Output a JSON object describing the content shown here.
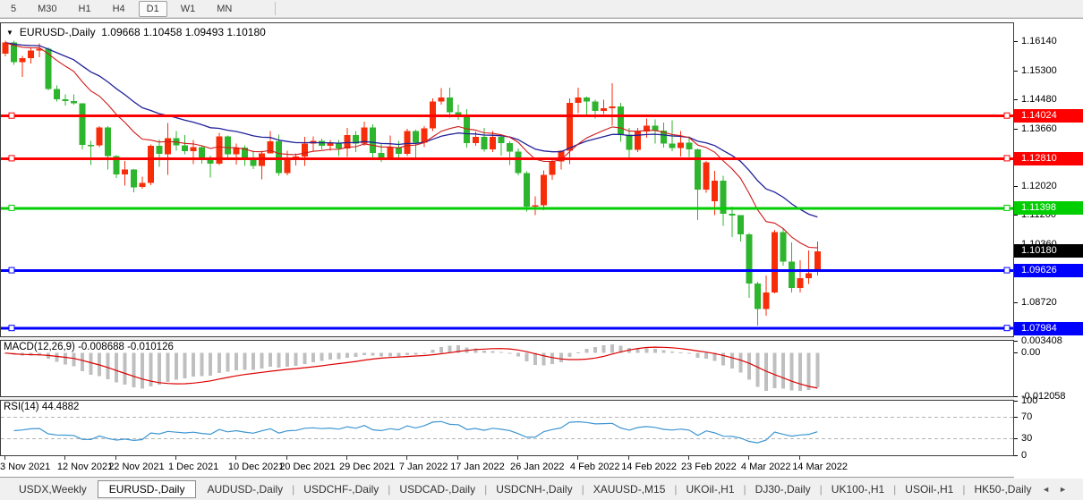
{
  "toolbar": {
    "timeframes": [
      "5",
      "M30",
      "H1",
      "H4",
      "D1",
      "W1",
      "MN"
    ],
    "active": "D1"
  },
  "chart_header": {
    "dropdown_icon": "▼",
    "symbol_period": "EURUSD-,Daily",
    "ohlc": "1.09668 1.10458 1.09493 1.10180"
  },
  "indicator_labels": {
    "macd": "MACD(12,26,9) -0.008688 -0.010126",
    "rsi": "RSI(14) 44.4882"
  },
  "right_axis": {
    "price_ticks": [
      "1.16140",
      "1.15300",
      "1.14480",
      "1.13660",
      "1.12020",
      "1.11200",
      "1.10360",
      "1.08720"
    ],
    "macd_ticks": [
      {
        "text": "0.003408",
        "value": 0.003408
      },
      {
        "text": "0.00",
        "value": 0
      },
      {
        "text": "-0.012058",
        "value": -0.012058
      }
    ],
    "rsi_ticks": [
      {
        "text": "100",
        "value": 100
      },
      {
        "text": "70",
        "value": 70
      },
      {
        "text": "30",
        "value": 30
      },
      {
        "text": "0",
        "value": 0
      }
    ]
  },
  "levels": [
    {
      "label": "1.14024",
      "price": 1.14024,
      "color": "#FF0000"
    },
    {
      "label": "1.12810",
      "price": 1.1281,
      "color": "#FF0000"
    },
    {
      "label": "1.11398",
      "price": 1.11398,
      "color": "#00CE00"
    },
    {
      "label": "1.09626",
      "price": 1.09626,
      "color": "#0000FF"
    },
    {
      "label": "1.07984",
      "price": 1.07984,
      "color": "#0000FF"
    }
  ],
  "current_price": {
    "label": "1.10180",
    "price": 1.1018,
    "color": "#000000"
  },
  "time_axis": [
    {
      "text": "3 Nov 2021",
      "index": 0
    },
    {
      "text": "12 Nov 2021",
      "index": 7
    },
    {
      "text": "22 Nov 2021",
      "index": 13
    },
    {
      "text": "1 Dec 2021",
      "index": 20
    },
    {
      "text": "10 Dec 2021",
      "index": 27
    },
    {
      "text": "20 Dec 2021",
      "index": 33
    },
    {
      "text": "29 Dec 2021",
      "index": 40
    },
    {
      "text": "7 Jan 2022",
      "index": 47
    },
    {
      "text": "17 Jan 2022",
      "index": 53
    },
    {
      "text": "26 Jan 2022",
      "index": 60
    },
    {
      "text": "4 Feb 2022",
      "index": 67
    },
    {
      "text": "14 Feb 2022",
      "index": 73
    },
    {
      "text": "23 Feb 2022",
      "index": 80
    },
    {
      "text": "4 Mar 2022",
      "index": 87
    },
    {
      "text": "14 Mar 2022",
      "index": 93
    }
  ],
  "tabs": {
    "items": [
      "USDX,Weekly",
      "EURUSD-,Daily",
      "AUDUSD-,Daily",
      "USDCHF-,Daily",
      "USDCAD-,Daily",
      "USDCNH-,Daily",
      "XAUUSD-,M15",
      "UKOil-,H1",
      "DJ30-,Daily",
      "UK100-,H1",
      "USOil-,H1",
      "HK50-,Daily"
    ],
    "active": "EURUSD-,Daily",
    "scroll_left": "◄",
    "scroll_right": "►"
  },
  "chart_data": {
    "type": "candlestick",
    "symbol": "EURUSD-",
    "timeframe": "Daily",
    "price_axis_range": [
      1.0776,
      1.1666
    ],
    "macd_axis_range": [
      -0.012058,
      0.003408
    ],
    "rsi_axis_range": [
      0,
      100
    ],
    "rsi_levels": [
      30,
      70
    ],
    "ma_fast_period": 13,
    "ma_fast_color": "#D01A1A",
    "ma_slow_period": 26,
    "ma_slow_color": "#22229B",
    "bull_color": "#F72D0A",
    "bear_color": "#2EB52E",
    "macd_histogram_color": "#BFBFBF",
    "macd_signal_color": "#DD0000",
    "rsi_color": "#3E96D2",
    "candles": [
      [
        1.158,
        1.1616,
        1.1572,
        1.1611
      ],
      [
        1.1611,
        1.1616,
        1.1548,
        1.1555
      ],
      [
        1.1555,
        1.1573,
        1.1513,
        1.1567
      ],
      [
        1.1567,
        1.1595,
        1.1552,
        1.1588
      ],
      [
        1.1588,
        1.1609,
        1.157,
        1.1593
      ],
      [
        1.1593,
        1.1597,
        1.1475,
        1.1479
      ],
      [
        1.1479,
        1.1489,
        1.1443,
        1.145
      ],
      [
        1.145,
        1.1464,
        1.1432,
        1.1445
      ],
      [
        1.1445,
        1.1464,
        1.1435,
        1.1439
      ],
      [
        1.1439,
        1.1439,
        1.1307,
        1.132
      ],
      [
        1.132,
        1.1331,
        1.1263,
        1.1319
      ],
      [
        1.1319,
        1.1374,
        1.1314,
        1.137
      ],
      [
        1.137,
        1.1374,
        1.125,
        1.1289
      ],
      [
        1.1289,
        1.1291,
        1.1226,
        1.1236
      ],
      [
        1.1236,
        1.1275,
        1.1205,
        1.125
      ],
      [
        1.125,
        1.1252,
        1.1186,
        1.12
      ],
      [
        1.12,
        1.123,
        1.1196,
        1.1212
      ],
      [
        1.1212,
        1.1322,
        1.1206,
        1.1317
      ],
      [
        1.1317,
        1.1336,
        1.1258,
        1.1294
      ],
      [
        1.1294,
        1.1383,
        1.1235,
        1.1339
      ],
      [
        1.1339,
        1.136,
        1.1304,
        1.1319
      ],
      [
        1.1319,
        1.1348,
        1.1293,
        1.1302
      ],
      [
        1.1302,
        1.1334,
        1.1266,
        1.1314
      ],
      [
        1.1314,
        1.1319,
        1.1267,
        1.1285
      ],
      [
        1.1285,
        1.129,
        1.1227,
        1.1267
      ],
      [
        1.1267,
        1.1354,
        1.1263,
        1.1344
      ],
      [
        1.1344,
        1.1347,
        1.128,
        1.1294
      ],
      [
        1.1294,
        1.1324,
        1.1264,
        1.1313
      ],
      [
        1.1313,
        1.1319,
        1.126,
        1.1284
      ],
      [
        1.1284,
        1.1304,
        1.1252,
        1.126
      ],
      [
        1.126,
        1.1304,
        1.1222,
        1.1296
      ],
      [
        1.1296,
        1.136,
        1.1296,
        1.133
      ],
      [
        1.133,
        1.1349,
        1.1232,
        1.124
      ],
      [
        1.124,
        1.1304,
        1.1234,
        1.128
      ],
      [
        1.128,
        1.1296,
        1.1262,
        1.1287
      ],
      [
        1.1287,
        1.1343,
        1.1261,
        1.1324
      ],
      [
        1.1324,
        1.1344,
        1.1303,
        1.1332
      ],
      [
        1.1332,
        1.1338,
        1.1308,
        1.1318
      ],
      [
        1.1318,
        1.1334,
        1.1304,
        1.1327
      ],
      [
        1.1327,
        1.1334,
        1.1289,
        1.131
      ],
      [
        1.131,
        1.1369,
        1.1286,
        1.1348
      ],
      [
        1.1348,
        1.136,
        1.13,
        1.1324
      ],
      [
        1.1324,
        1.1386,
        1.1317,
        1.137
      ],
      [
        1.137,
        1.1379,
        1.1279,
        1.1297
      ],
      [
        1.1297,
        1.1323,
        1.1272,
        1.1285
      ],
      [
        1.1285,
        1.1347,
        1.128,
        1.1314
      ],
      [
        1.1314,
        1.1332,
        1.1285,
        1.1295
      ],
      [
        1.1295,
        1.1366,
        1.1289,
        1.136
      ],
      [
        1.136,
        1.1363,
        1.1285,
        1.1327
      ],
      [
        1.1327,
        1.1374,
        1.1314,
        1.1367
      ],
      [
        1.1367,
        1.1453,
        1.136,
        1.1443
      ],
      [
        1.1443,
        1.1482,
        1.1435,
        1.1455
      ],
      [
        1.1455,
        1.1483,
        1.1398,
        1.1413
      ],
      [
        1.1413,
        1.1435,
        1.1392,
        1.1406
      ],
      [
        1.1406,
        1.1422,
        1.1313,
        1.1325
      ],
      [
        1.1325,
        1.1358,
        1.1318,
        1.1343
      ],
      [
        1.1343,
        1.1369,
        1.1301,
        1.1308
      ],
      [
        1.1308,
        1.136,
        1.13,
        1.1343
      ],
      [
        1.1343,
        1.1344,
        1.129,
        1.1325
      ],
      [
        1.1325,
        1.133,
        1.1263,
        1.1301
      ],
      [
        1.1301,
        1.131,
        1.1234,
        1.124
      ],
      [
        1.124,
        1.1245,
        1.1131,
        1.1145
      ],
      [
        1.1145,
        1.1174,
        1.1121,
        1.1148
      ],
      [
        1.1148,
        1.1248,
        1.1135,
        1.1235
      ],
      [
        1.1235,
        1.1279,
        1.1221,
        1.1273
      ],
      [
        1.1273,
        1.1305,
        1.125,
        1.1304
      ],
      [
        1.1304,
        1.1452,
        1.1266,
        1.144
      ],
      [
        1.144,
        1.1483,
        1.1411,
        1.1455
      ],
      [
        1.1455,
        1.1458,
        1.14,
        1.1443
      ],
      [
        1.1443,
        1.1449,
        1.1395,
        1.1417
      ],
      [
        1.1417,
        1.1448,
        1.1408,
        1.1424
      ],
      [
        1.1424,
        1.1495,
        1.1375,
        1.143
      ],
      [
        1.143,
        1.144,
        1.1329,
        1.135
      ],
      [
        1.135,
        1.1369,
        1.1278,
        1.1306
      ],
      [
        1.1306,
        1.1368,
        1.13,
        1.1358
      ],
      [
        1.1358,
        1.1395,
        1.134,
        1.1375
      ],
      [
        1.1375,
        1.1393,
        1.1324,
        1.1361
      ],
      [
        1.1361,
        1.1384,
        1.1312,
        1.1324
      ],
      [
        1.1324,
        1.139,
        1.1303,
        1.1311
      ],
      [
        1.1311,
        1.1359,
        1.1287,
        1.1327
      ],
      [
        1.1327,
        1.1344,
        1.1286,
        1.1307
      ],
      [
        1.1307,
        1.131,
        1.1106,
        1.1193
      ],
      [
        1.1193,
        1.1274,
        1.1184,
        1.127
      ],
      [
        1.116,
        1.1246,
        1.1121,
        1.1219
      ],
      [
        1.1219,
        1.1232,
        1.109,
        1.1125
      ],
      [
        1.1125,
        1.1145,
        1.1058,
        1.112
      ],
      [
        1.112,
        1.1121,
        1.1045,
        1.1066
      ],
      [
        1.1066,
        1.107,
        1.0885,
        1.0926
      ],
      [
        1.0926,
        1.0931,
        1.0806,
        1.0854
      ],
      [
        1.0854,
        1.0949,
        1.0834,
        1.0901
      ],
      [
        1.0901,
        1.1078,
        1.0898,
        1.1072
      ],
      [
        1.1072,
        1.1084,
        1.0977,
        1.0988
      ],
      [
        1.0988,
        1.1043,
        1.09,
        1.0913
      ],
      [
        1.0913,
        1.0992,
        1.0901,
        1.0941
      ],
      [
        1.0941,
        1.102,
        1.0925,
        1.0955
      ],
      [
        1.0967,
        1.1046,
        1.0949,
        1.1018
      ]
    ]
  }
}
